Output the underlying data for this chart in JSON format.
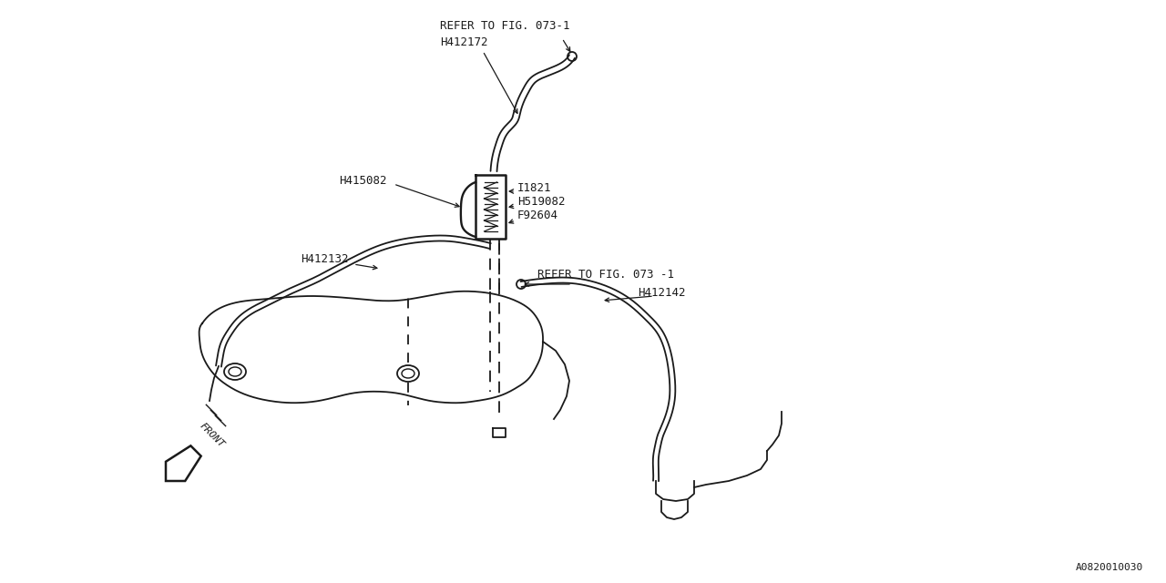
{
  "bg_color": "#ffffff",
  "line_color": "#1a1a1a",
  "fig_width": 12.8,
  "fig_height": 6.4,
  "dpi": 100,
  "watermark": "A0820010030",
  "font_size": 9,
  "font_family": "monospace",
  "label_refer_top": "REFER TO FIG. 073-1",
  "label_h412172": "H412172",
  "label_h415082": "H415082",
  "label_i1821": "I1821",
  "label_h519082": "H519082",
  "label_f92604": "F92604",
  "label_h412132": "H412132",
  "label_refer_mid": "REFER TO FIG. 073 -1",
  "label_h412142": "H412142",
  "label_front": "FRONT"
}
